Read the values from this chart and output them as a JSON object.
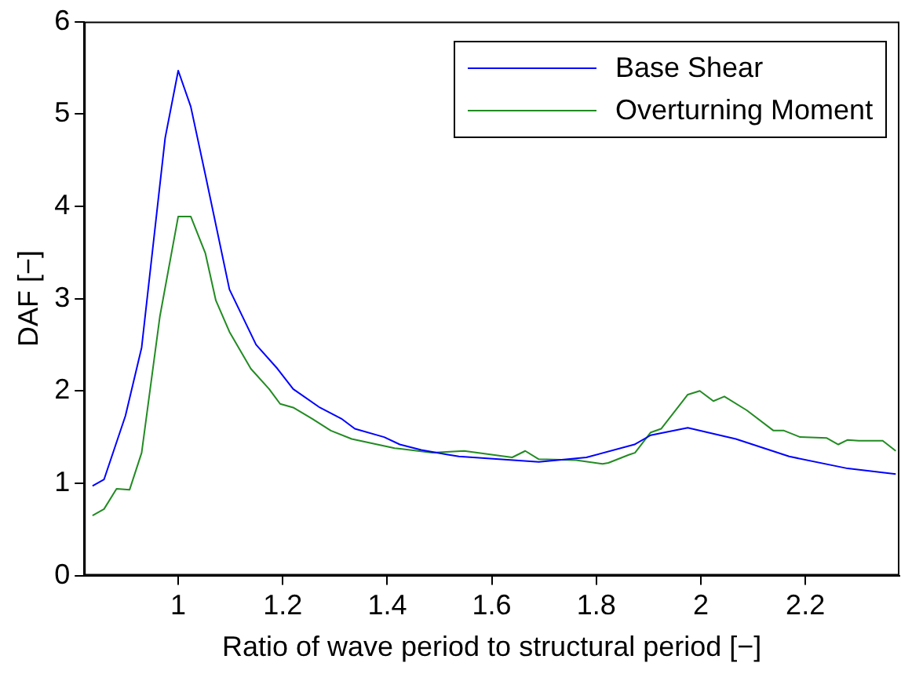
{
  "chart_data": {
    "type": "line",
    "xlabel": "Ratio of wave period to structural period [−]",
    "ylabel": "DAF [−]",
    "xlim": [
      0.82,
      2.38
    ],
    "xticks": [
      1,
      1.2,
      1.4,
      1.6,
      1.8,
      2,
      2.2
    ],
    "ylim": [
      0,
      6
    ],
    "yticks": [
      0,
      1,
      2,
      3,
      4,
      5,
      6
    ],
    "grid": false,
    "legend": "top right",
    "series": [
      {
        "name": "Base Shear",
        "color": "#0000ff",
        "x": [
          0.836,
          0.858,
          0.899,
          0.93,
          0.975,
          1.0,
          1.024,
          1.052,
          1.098,
          1.149,
          1.19,
          1.22,
          1.271,
          1.312,
          1.338,
          1.394,
          1.424,
          1.465,
          1.516,
          1.537,
          1.69,
          1.781,
          1.873,
          1.904,
          1.975,
          2.067,
          2.169,
          2.281,
          2.373
        ],
        "values": [
          0.97,
          1.04,
          1.73,
          2.47,
          4.74,
          5.47,
          5.08,
          4.34,
          3.1,
          2.5,
          2.24,
          2.02,
          1.82,
          1.7,
          1.59,
          1.5,
          1.42,
          1.36,
          1.31,
          1.29,
          1.23,
          1.28,
          1.42,
          1.52,
          1.6,
          1.48,
          1.29,
          1.16,
          1.1
        ]
      },
      {
        "name": "Overturning Moment",
        "color": "#228b22",
        "x": [
          0.836,
          0.858,
          0.882,
          0.907,
          0.93,
          0.965,
          1.0,
          1.024,
          1.052,
          1.072,
          1.098,
          1.139,
          1.174,
          1.195,
          1.22,
          1.256,
          1.292,
          1.332,
          1.414,
          1.486,
          1.547,
          1.639,
          1.664,
          1.69,
          1.761,
          1.812,
          1.823,
          1.863,
          1.874,
          1.904,
          1.924,
          1.975,
          1.998,
          2.024,
          2.045,
          2.088,
          2.139,
          2.159,
          2.19,
          2.241,
          2.263,
          2.281,
          2.302,
          2.348,
          2.373
        ],
        "values": [
          0.65,
          0.72,
          0.94,
          0.93,
          1.33,
          2.81,
          3.89,
          3.89,
          3.49,
          2.98,
          2.64,
          2.24,
          2.02,
          1.86,
          1.82,
          1.7,
          1.57,
          1.48,
          1.38,
          1.33,
          1.35,
          1.28,
          1.35,
          1.26,
          1.25,
          1.21,
          1.22,
          1.31,
          1.33,
          1.55,
          1.59,
          1.96,
          2.0,
          1.89,
          1.94,
          1.79,
          1.57,
          1.57,
          1.5,
          1.49,
          1.42,
          1.47,
          1.46,
          1.46,
          1.35
        ]
      }
    ]
  }
}
